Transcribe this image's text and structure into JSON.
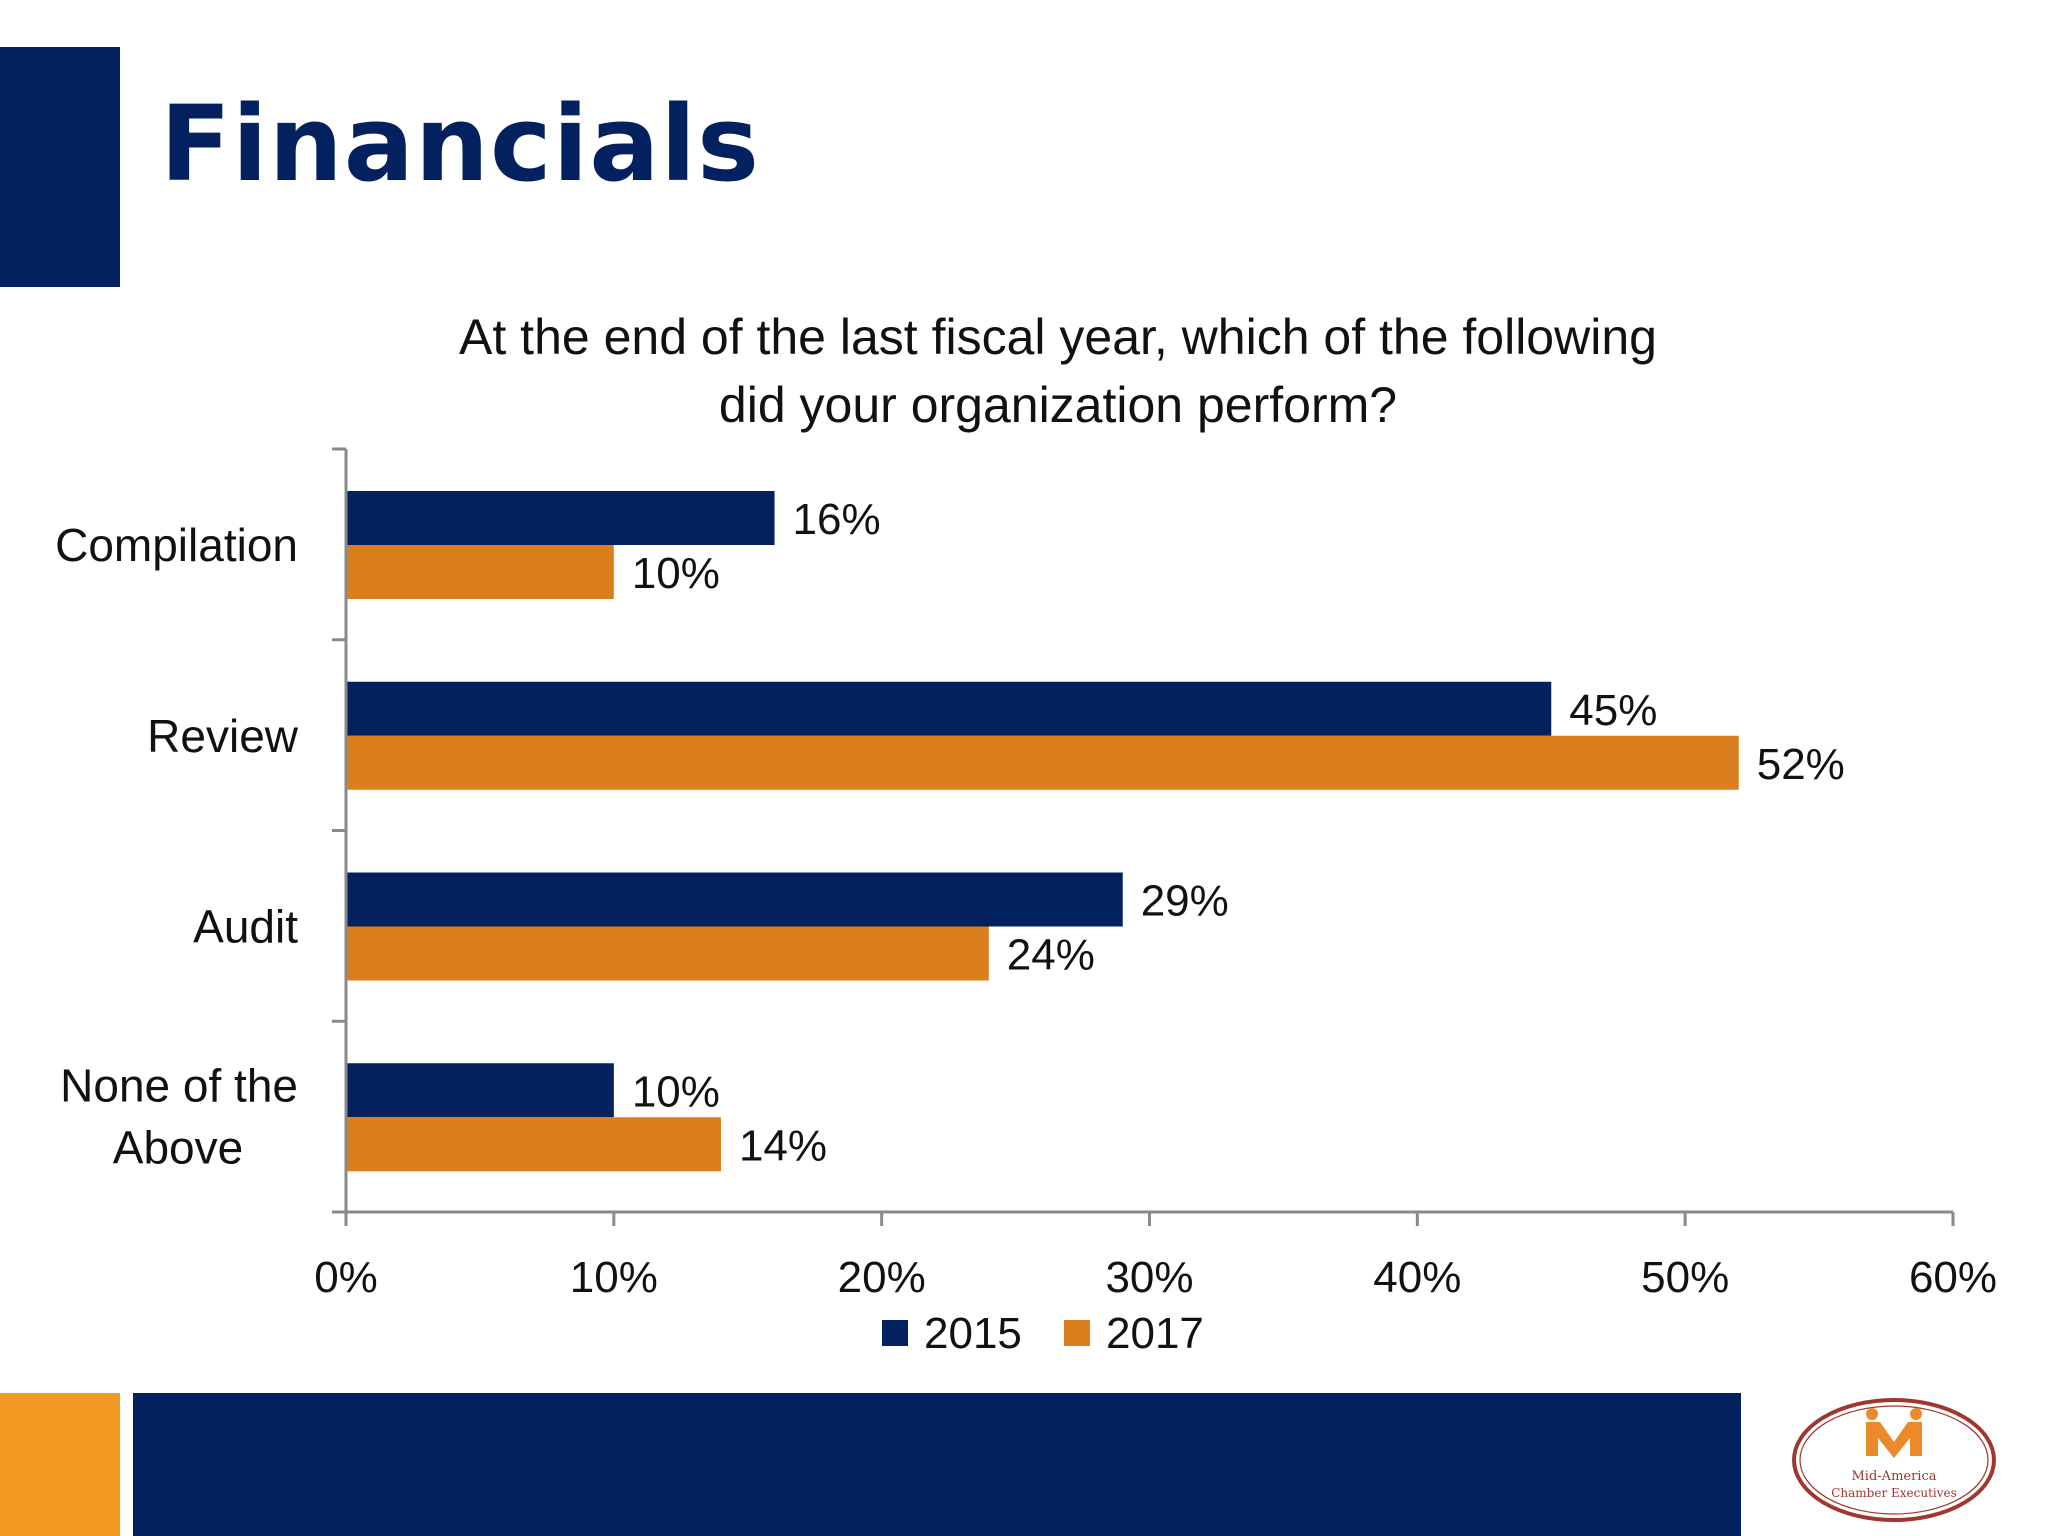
{
  "slide": {
    "title": "Financials"
  },
  "chart_data": {
    "type": "bar",
    "orientation": "horizontal",
    "title_lines": [
      "At the end of the last fiscal year, which of the following",
      "did your organization perform?"
    ],
    "categories": [
      "Compilation",
      "Review",
      "Audit",
      "None of the Above"
    ],
    "series": [
      {
        "name": "2015",
        "values": [
          16,
          45,
          29,
          10
        ],
        "color": "#03205f"
      },
      {
        "name": "2017",
        "values": [
          10,
          52,
          24,
          14
        ],
        "color": "#db7f1e"
      }
    ],
    "value_suffix": "%",
    "xlim": [
      0,
      60
    ],
    "x_ticks": [
      0,
      10,
      20,
      30,
      40,
      50,
      60
    ],
    "x_tick_labels": [
      "0%",
      "10%",
      "20%",
      "30%",
      "40%",
      "50%",
      "60%"
    ],
    "grid": false,
    "legend_position": "bottom"
  },
  "logo": {
    "text_lines": [
      "Mid-America",
      "Chamber Executives"
    ]
  },
  "colors": {
    "navy": "#03205f",
    "orange": "#f29a22",
    "bar_orange": "#db7f1e"
  }
}
